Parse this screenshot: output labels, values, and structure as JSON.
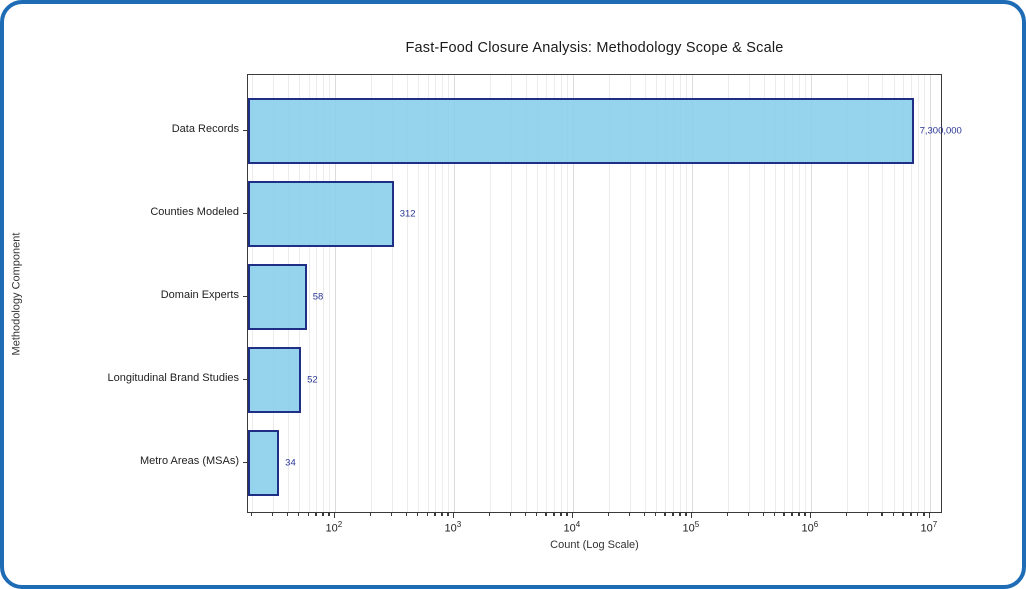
{
  "frame": {
    "border_color": "#1e6cb5",
    "background": "#ffffff"
  },
  "chart_data": {
    "type": "bar",
    "orientation": "horizontal",
    "title": "Fast-Food Closure Analysis: Methodology Scope & Scale",
    "xlabel": "Count (Log Scale)",
    "ylabel": "Methodology Component",
    "categories": [
      "Data Records",
      "Counties Modeled",
      "Domain Experts",
      "Longitudinal Brand Studies",
      "Metro Areas (MSAs)"
    ],
    "values": [
      7300000,
      312,
      58,
      52,
      34
    ],
    "value_labels": [
      "7,300,000",
      "312",
      "58",
      "52",
      "34"
    ],
    "x_scale": "log",
    "xlim": [
      18.6,
      12900000
    ],
    "x_tick_exponents": [
      2,
      3,
      4,
      5,
      6,
      7
    ],
    "grid": true,
    "legend": false,
    "bar_color": "rgba(135,206,235,0.88)",
    "bar_edge_color": "#1f2f86",
    "value_label_color": "#283593"
  }
}
